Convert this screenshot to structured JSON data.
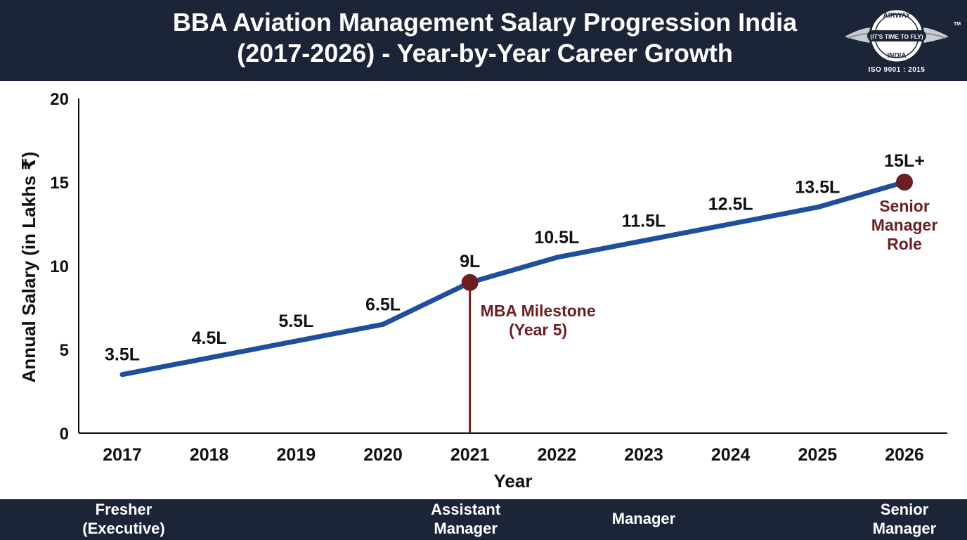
{
  "header": {
    "title_line1": "BBA Aviation Management Salary Progression India",
    "title_line2": "(2017-2026) - Year-by-Year Career Growth"
  },
  "logo": {
    "top_text": "AIRWAY",
    "tagline": "(IT'S TIME TO FLY)",
    "bottom_text": "INDIA",
    "tm": "TM",
    "iso": "ISO 9001 : 2015"
  },
  "colors": {
    "header_bg": "#1c2538",
    "line": "#1f4e9c",
    "milestone": "#6b1f22",
    "text": "#111111"
  },
  "chart_data": {
    "type": "line",
    "xlabel": "Year",
    "ylabel": "Annual Salary (in Lakhs ₹)",
    "ylim": [
      0,
      20
    ],
    "yticks": [
      0,
      5,
      10,
      15,
      20
    ],
    "grid": false,
    "x": [
      "2017",
      "2018",
      "2019",
      "2020",
      "2021",
      "2022",
      "2023",
      "2024",
      "2025",
      "2026"
    ],
    "values": [
      3.5,
      4.5,
      5.5,
      6.5,
      9,
      10.5,
      11.5,
      12.5,
      13.5,
      15
    ],
    "data_labels": [
      "3.5L",
      "4.5L",
      "5.5L",
      "6.5L",
      "9L",
      "10.5L",
      "11.5L",
      "12.5L",
      "13.5L",
      "15L+"
    ],
    "annotations": [
      {
        "x": "2021",
        "y": 9,
        "lines": [
          "MBA Milestone",
          "(Year 5)"
        ]
      },
      {
        "x": "2026",
        "y": 15,
        "lines": [
          "Senior",
          "Manager",
          "Role"
        ]
      }
    ]
  },
  "footer": {
    "roles": [
      {
        "x": "2017",
        "lines": [
          "Fresher",
          "(Executive)"
        ]
      },
      {
        "x": "2021",
        "lines": [
          "Assistant",
          "Manager"
        ]
      },
      {
        "x": "2023",
        "lines": [
          "Manager"
        ]
      },
      {
        "x": "2026",
        "lines": [
          "Senior",
          "Manager"
        ]
      }
    ]
  }
}
